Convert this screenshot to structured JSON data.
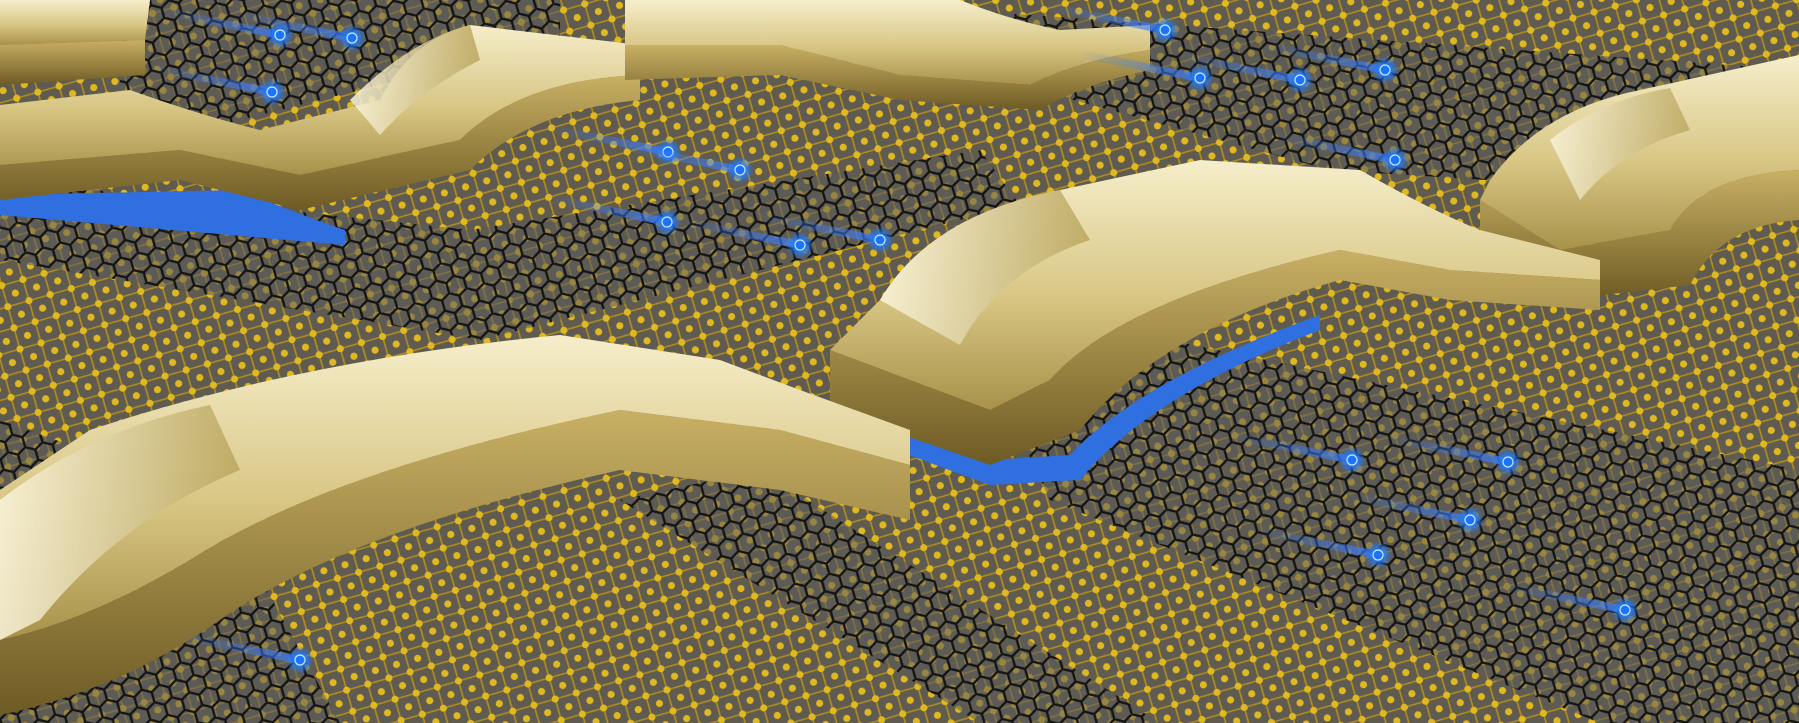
{
  "image": {
    "kind": "3d-render",
    "subject": "gold-electrodes-over-graphene-nanoribbons",
    "visible_text": []
  },
  "palette": {
    "substrate": "#6a6456",
    "atom_gold": "#d9b21f",
    "bond_gold": "#b8941a",
    "graphene": "#1e1e1e",
    "electrode_light": "#f1e6bd",
    "electrode_mid": "#c9b56e",
    "electrode_dark": "#7d6a2f",
    "dielectric_blue": "#2f6fe0",
    "carrier_glow": "#59a8ff",
    "carrier_core": "#1a74ff"
  },
  "elements": {
    "nanoribbon_count": 5,
    "electrode_count": 6,
    "carrier_count": 19
  }
}
